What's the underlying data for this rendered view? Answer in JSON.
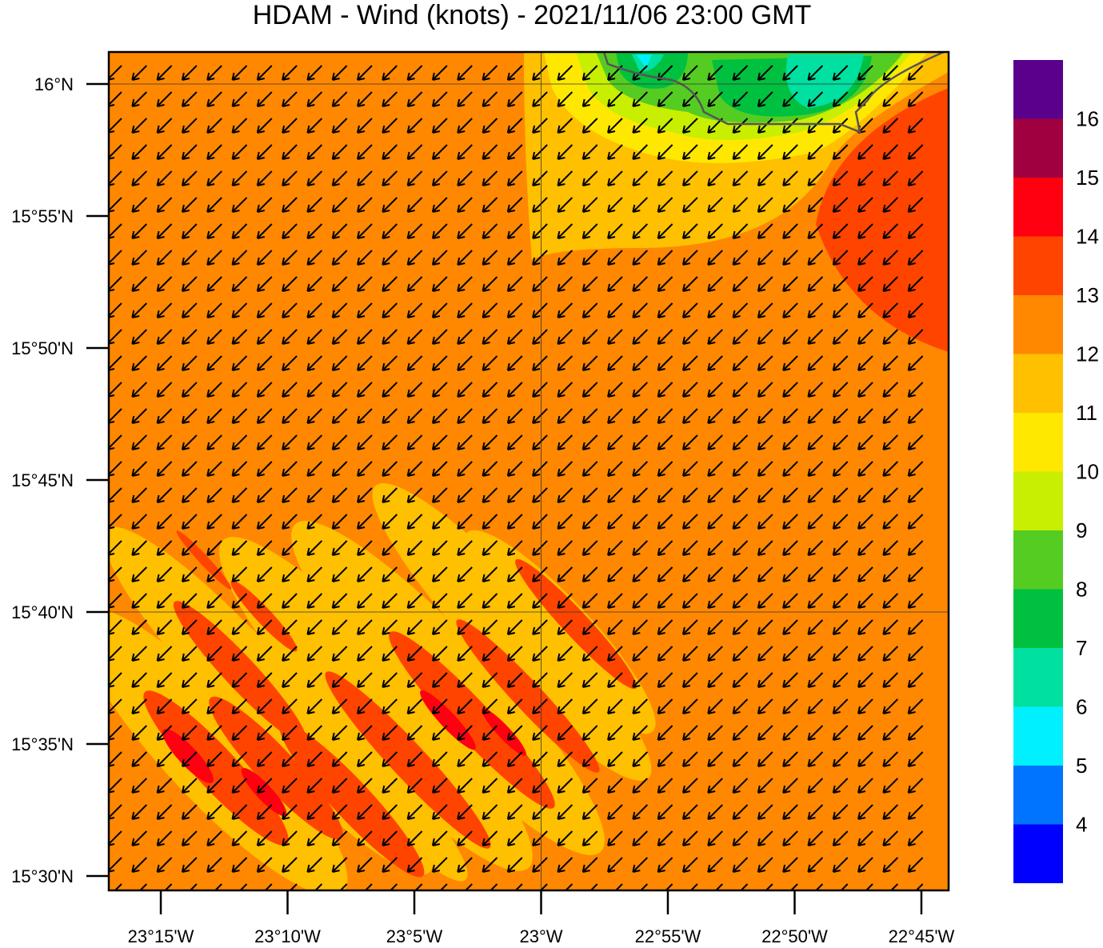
{
  "title": "HDAM - Wind (knots)  -  2021/11/06  23:00 GMT",
  "map": {
    "lat_range": [
      15.4909,
      16.0202
    ],
    "lon_range": [
      -23.2842,
      -22.7321
    ],
    "lat_ticks": [
      {
        "value": 16,
        "label": "16°N"
      },
      {
        "value": 15.91667,
        "label": "15°55'N"
      },
      {
        "value": 15.83333,
        "label": "15°50'N"
      },
      {
        "value": 15.75,
        "label": "15°45'N"
      },
      {
        "value": 15.66667,
        "label": "15°40'N"
      },
      {
        "value": 15.58333,
        "label": "15°35'N"
      },
      {
        "value": 15.5,
        "label": "15°30'N"
      }
    ],
    "lon_ticks": [
      {
        "value": -23.25,
        "label": "23°15'W"
      },
      {
        "value": -23.16667,
        "label": "23°10'W"
      },
      {
        "value": -23.08333,
        "label": "23°5'W"
      },
      {
        "value": -23,
        "label": "23°W"
      },
      {
        "value": -22.91667,
        "label": "22°55'W"
      },
      {
        "value": -22.83333,
        "label": "22°50'W"
      },
      {
        "value": -22.75,
        "label": "22°45'W"
      }
    ],
    "grid_lats": [
      16,
      15.66667
    ],
    "grid_lons": [
      -23
    ]
  },
  "colorbar": {
    "levels": [
      4,
      5,
      6,
      7,
      8,
      9,
      10,
      11,
      12,
      13,
      14,
      15,
      16
    ],
    "colors": [
      "#0000ff",
      "#0073ff",
      "#00f0ff",
      "#00e0a0",
      "#00c040",
      "#55cc22",
      "#c8ee00",
      "#ffe800",
      "#ffc000",
      "#ff8800",
      "#ff4400",
      "#ff0010",
      "#a00040",
      "#5a008c"
    ]
  }
}
